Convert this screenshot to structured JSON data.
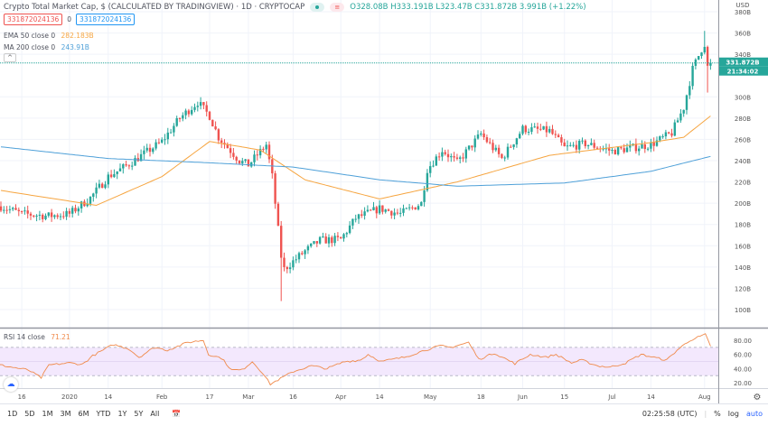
{
  "header": {
    "title": "Crypto Total Market Cap, $ (CALCULATED BY TRADINGVIEW) · 1D · CRYPTOCAP",
    "ohlc": "O328.08B H333.191B L323.47B C331.872B 3.991B (+1.22%)",
    "box_left": "331872024136",
    "box_mid": "0",
    "box_right": "331872024136",
    "ema_label": "EMA 50 close 0",
    "ema_value": "282.183B",
    "ma_label": "MA 200 close 0",
    "ma_value": "243.91B",
    "collapse": "^"
  },
  "price_scale": {
    "currency": "USD",
    "ticks": [
      "380B",
      "360B",
      "340B",
      "300B",
      "280B",
      "260B",
      "240B",
      "220B",
      "200B",
      "180B",
      "160B",
      "140B",
      "120B",
      "100B"
    ],
    "last_price": "331.872B",
    "countdown": "21:34:02"
  },
  "rsi": {
    "label": "RSI 14 close",
    "value": "71.21",
    "ticks": [
      "80.00",
      "60.00",
      "40.00",
      "20.00"
    ]
  },
  "time_axis": {
    "labels": [
      [
        "16",
        "2019-12-16"
      ],
      [
        "2020",
        "2020-01-01"
      ],
      [
        "14",
        "2020-01-14"
      ],
      [
        "Feb",
        "2020-02-01"
      ],
      [
        "17",
        "2020-02-17"
      ],
      [
        "Mar",
        "2020-03-01"
      ],
      [
        "16",
        "2020-03-16"
      ],
      [
        "Apr",
        "2020-04-01"
      ],
      [
        "14",
        "2020-04-14"
      ],
      [
        "May",
        "2020-05-01"
      ],
      [
        "18",
        "2020-05-18"
      ],
      [
        "Jun",
        "2020-06-01"
      ],
      [
        "15",
        "2020-06-15"
      ],
      [
        "Jul",
        "2020-07-01"
      ],
      [
        "14",
        "2020-07-14"
      ],
      [
        "Aug",
        "2020-08-01"
      ]
    ]
  },
  "toolbar": {
    "ranges": [
      "1D",
      "5D",
      "1M",
      "3M",
      "6M",
      "YTD",
      "1Y",
      "5Y",
      "All"
    ],
    "clock": "02:25:58 (UTC)",
    "percent": "%",
    "log": "log",
    "auto": "auto"
  },
  "colors": {
    "up": "#26a69a",
    "down": "#ef5350",
    "ema": "#f6a540",
    "ma": "#4ea0d8",
    "rsi": "#f08a4b",
    "rsi_band": "#f3e8fd"
  },
  "chart_data": {
    "type": "candlestick",
    "ylim": [
      90,
      385
    ],
    "unit": "B USD",
    "closes": [
      [
        "2019-12-09",
        197
      ],
      [
        "2019-12-16",
        190
      ],
      [
        "2019-12-25",
        188
      ],
      [
        "2020-01-01",
        190
      ],
      [
        "2020-01-08",
        205
      ],
      [
        "2020-01-14",
        225
      ],
      [
        "2020-01-20",
        235
      ],
      [
        "2020-02-01",
        258
      ],
      [
        "2020-02-07",
        280
      ],
      [
        "2020-02-13",
        295
      ],
      [
        "2020-02-17",
        282
      ],
      [
        "2020-02-20",
        262
      ],
      [
        "2020-02-27",
        240
      ],
      [
        "2020-03-01",
        236
      ],
      [
        "2020-03-07",
        255
      ],
      [
        "2020-03-09",
        225
      ],
      [
        "2020-03-12",
        150
      ],
      [
        "2020-03-13",
        138
      ],
      [
        "2020-03-20",
        155
      ],
      [
        "2020-03-25",
        165
      ],
      [
        "2020-04-01",
        166
      ],
      [
        "2020-04-06",
        186
      ],
      [
        "2020-04-14",
        195
      ],
      [
        "2020-04-21",
        190
      ],
      [
        "2020-04-28",
        200
      ],
      [
        "2020-04-30",
        232
      ],
      [
        "2020-05-05",
        250
      ],
      [
        "2020-05-10",
        238
      ],
      [
        "2020-05-18",
        265
      ],
      [
        "2020-05-25",
        242
      ],
      [
        "2020-06-01",
        270
      ],
      [
        "2020-06-10",
        268
      ],
      [
        "2020-06-15",
        252
      ],
      [
        "2020-06-22",
        256
      ],
      [
        "2020-07-01",
        249
      ],
      [
        "2020-07-14",
        255
      ],
      [
        "2020-07-21",
        266
      ],
      [
        "2020-07-25",
        290
      ],
      [
        "2020-07-28",
        326
      ],
      [
        "2020-07-31",
        345
      ],
      [
        "2020-08-01",
        350
      ],
      [
        "2020-08-02",
        328
      ],
      [
        "2020-08-03",
        332
      ]
    ],
    "ema50": [
      [
        "2019-12-09",
        212
      ],
      [
        "2020-01-10",
        198
      ],
      [
        "2020-02-01",
        225
      ],
      [
        "2020-02-17",
        258
      ],
      [
        "2020-03-05",
        250
      ],
      [
        "2020-03-20",
        222
      ],
      [
        "2020-04-14",
        204
      ],
      [
        "2020-05-10",
        220
      ],
      [
        "2020-06-10",
        245
      ],
      [
        "2020-07-14",
        257
      ],
      [
        "2020-07-25",
        262
      ],
      [
        "2020-08-03",
        282
      ]
    ],
    "ma200": [
      [
        "2019-12-09",
        253
      ],
      [
        "2020-01-14",
        242
      ],
      [
        "2020-02-17",
        238
      ],
      [
        "2020-03-16",
        234
      ],
      [
        "2020-04-14",
        222
      ],
      [
        "2020-05-10",
        216
      ],
      [
        "2020-06-15",
        219
      ],
      [
        "2020-07-14",
        230
      ],
      [
        "2020-08-03",
        244
      ]
    ],
    "rsi14": [
      [
        "2019-12-09",
        45
      ],
      [
        "2019-12-20",
        38
      ],
      [
        "2019-12-25",
        27
      ],
      [
        "2019-12-28",
        45
      ],
      [
        "2020-01-05",
        48
      ],
      [
        "2020-01-10",
        46
      ],
      [
        "2020-01-14",
        58
      ],
      [
        "2020-01-18",
        66
      ],
      [
        "2020-01-22",
        74
      ],
      [
        "2020-01-28",
        68
      ],
      [
        "2020-02-01",
        56
      ],
      [
        "2020-02-07",
        70
      ],
      [
        "2020-02-12",
        66
      ],
      [
        "2020-02-20",
        77
      ],
      [
        "2020-02-26",
        80
      ],
      [
        "2020-02-28",
        60
      ],
      [
        "2020-03-04",
        55
      ],
      [
        "2020-03-08",
        38
      ],
      [
        "2020-03-12",
        38
      ],
      [
        "2020-03-16",
        50
      ],
      [
        "2020-03-20",
        34
      ],
      [
        "2020-03-23",
        18
      ],
      [
        "2020-03-27",
        26
      ],
      [
        "2020-04-01",
        36
      ],
      [
        "2020-04-08",
        44
      ],
      [
        "2020-04-14",
        40
      ],
      [
        "2020-04-21",
        50
      ],
      [
        "2020-04-27",
        52
      ],
      [
        "2020-04-30",
        60
      ],
      [
        "2020-05-05",
        50
      ],
      [
        "2020-05-14",
        56
      ],
      [
        "2020-05-22",
        66
      ],
      [
        "2020-05-28",
        72
      ],
      [
        "2020-06-01",
        70
      ],
      [
        "2020-06-08",
        77
      ],
      [
        "2020-06-12",
        53
      ],
      [
        "2020-06-18",
        62
      ],
      [
        "2020-06-26",
        47
      ],
      [
        "2020-07-02",
        60
      ],
      [
        "2020-07-08",
        56
      ],
      [
        "2020-07-12",
        60
      ],
      [
        "2020-07-18",
        48
      ],
      [
        "2020-07-22",
        52
      ],
      [
        "2020-07-28",
        44
      ],
      [
        "2020-08-02",
        42
      ],
      [
        "2020-08-08",
        48
      ],
      [
        "2020-08-14",
        60
      ],
      [
        "2020-08-20",
        55
      ],
      [
        "2020-08-24",
        52
      ],
      [
        "2020-08-28",
        66
      ],
      [
        "2020-09-02",
        80
      ],
      [
        "2020-09-08",
        88
      ],
      [
        "2020-09-10",
        71
      ]
    ]
  }
}
